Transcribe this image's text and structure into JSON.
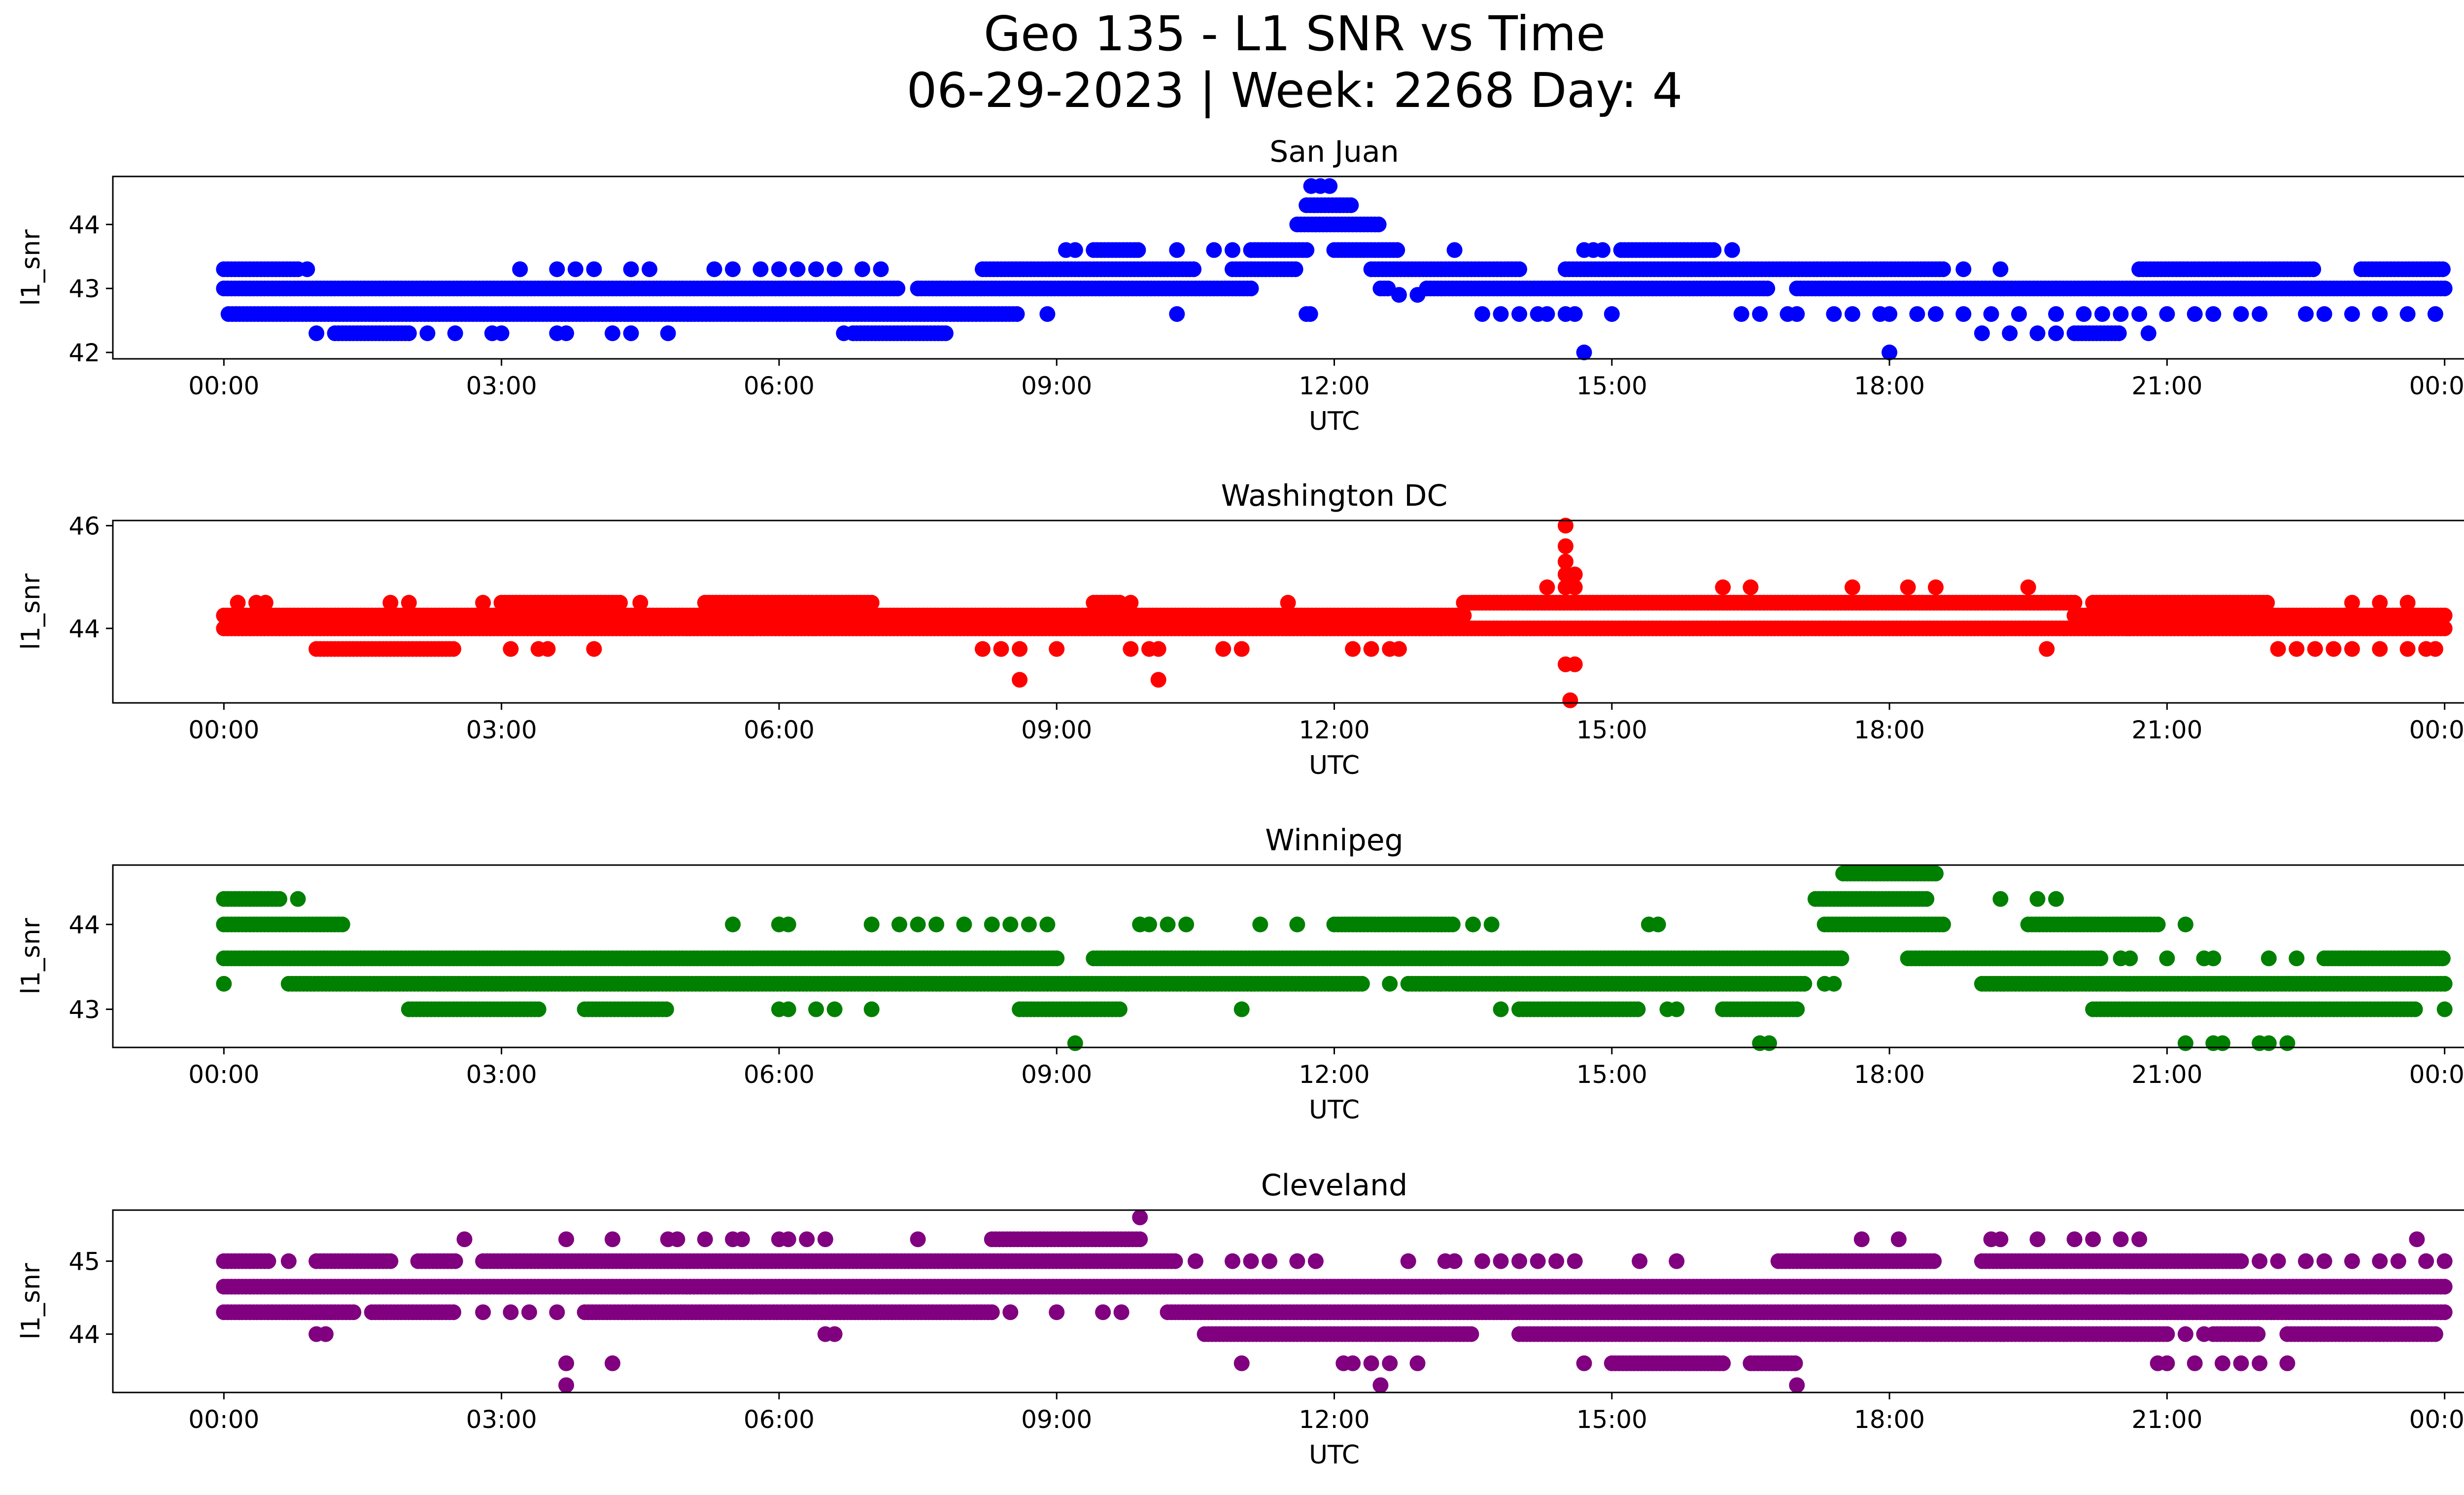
{
  "figure": {
    "title_line1": "Geo 135 - L1 SNR vs Time",
    "title_line2": "06-29-2023 | Week: 2268 Day: 4"
  },
  "chart_data": [
    {
      "type": "scatter",
      "title": "San Juan",
      "xlabel": "UTC",
      "ylabel": "l1_snr",
      "color": "#0000ff",
      "x_ticks": [
        "00:00",
        "03:00",
        "06:00",
        "09:00",
        "12:00",
        "15:00",
        "18:00",
        "21:00",
        "00:00"
      ],
      "y_ticks": [
        42,
        43,
        44
      ],
      "xlim_hours": [
        -1.2,
        25.2
      ],
      "ylim": [
        41.9,
        44.75
      ],
      "series": [
        {
          "y": 43.0,
          "segments": [
            [
              0.0,
              7.3
            ],
            [
              7.5,
              11.1
            ],
            [
              12.5,
              12.6
            ],
            [
              13.0,
              16.7
            ],
            [
              17.0,
              24.0
            ]
          ]
        },
        {
          "y": 42.6,
          "segments": [
            [
              0.05,
              8.6
            ],
            [
              11.7,
              11.75
            ]
          ],
          "points": [
            8.9,
            10.3,
            13.6,
            13.8,
            14.0,
            14.2,
            14.3,
            14.5,
            14.6,
            15.0,
            16.4,
            16.6,
            16.9,
            17.0,
            17.4,
            17.6,
            17.9,
            18.0,
            18.3,
            18.5,
            18.8,
            19.1,
            19.4,
            19.8,
            20.1,
            20.3,
            20.5,
            20.7,
            21.0,
            21.3,
            21.5,
            21.8,
            22.0,
            22.5,
            22.7,
            23.0,
            23.3,
            23.6,
            23.9
          ]
        },
        {
          "y": 43.3,
          "segments": [
            [
              0.0,
              0.8
            ],
            [
              8.2,
              10.5
            ],
            [
              10.9,
              11.6
            ],
            [
              12.4,
              14.0
            ],
            [
              14.5,
              18.6
            ],
            [
              20.7,
              22.6
            ],
            [
              23.1,
              24.0
            ]
          ],
          "points": [
            0.9,
            3.2,
            3.6,
            3.8,
            4.0,
            4.4,
            4.6,
            5.3,
            5.5,
            5.8,
            6.0,
            6.2,
            6.4,
            6.6,
            6.9,
            7.1,
            18.8,
            19.2
          ]
        },
        {
          "y": 42.3,
          "segments": [
            [
              1.2,
              2.0
            ],
            [
              6.8,
              7.8
            ],
            [
              20.0,
              20.5
            ]
          ],
          "points": [
            1.0,
            2.2,
            2.5,
            2.9,
            3.0,
            3.6,
            3.7,
            4.2,
            4.4,
            4.8,
            6.7,
            19.0,
            19.3,
            19.6,
            19.8,
            20.8
          ]
        },
        {
          "y": 43.6,
          "segments": [
            [
              9.4,
              9.9
            ],
            [
              11.1,
              11.7
            ],
            [
              12.0,
              12.7
            ],
            [
              15.1,
              16.1
            ]
          ],
          "points": [
            9.1,
            9.2,
            10.3,
            10.7,
            10.9,
            13.3,
            14.7,
            14.8,
            14.9,
            16.3
          ]
        },
        {
          "y": 42.9,
          "points": [
            12.7,
            12.9
          ]
        },
        {
          "y": 44.0,
          "segments": [
            [
              11.6,
              12.5
            ]
          ]
        },
        {
          "y": 44.3,
          "segments": [
            [
              11.7,
              12.2
            ]
          ]
        },
        {
          "y": 44.6,
          "points": [
            11.75,
            11.85,
            11.95
          ]
        },
        {
          "y": 42.0,
          "points": [
            14.7,
            18.0
          ]
        }
      ]
    },
    {
      "type": "scatter",
      "title": "Washington DC",
      "xlabel": "UTC",
      "ylabel": "l1_snr",
      "color": "#ff0000",
      "x_ticks": [
        "00:00",
        "03:00",
        "06:00",
        "09:00",
        "12:00",
        "15:00",
        "18:00",
        "21:00",
        "00:00"
      ],
      "y_ticks": [
        44,
        46
      ],
      "xlim_hours": [
        -1.2,
        25.2
      ],
      "ylim": [
        42.55,
        46.1
      ],
      "series": [
        {
          "y": 44.0,
          "segments": [
            [
              0.0,
              24.0
            ]
          ]
        },
        {
          "y": 44.25,
          "segments": [
            [
              0.0,
              13.4
            ],
            [
              20.0,
              24.0
            ]
          ]
        },
        {
          "y": 44.5,
          "segments": [
            [
              3.0,
              4.3
            ],
            [
              5.2,
              7.0
            ],
            [
              9.4,
              9.7
            ],
            [
              13.4,
              20.0
            ],
            [
              20.2,
              22.1
            ]
          ],
          "points": [
            0.15,
            0.35,
            0.45,
            1.8,
            2.0,
            2.8,
            4.5,
            9.8,
            11.5,
            23.0,
            23.3,
            23.6
          ]
        },
        {
          "y": 43.6,
          "segments": [
            [
              1.0,
              2.5
            ]
          ],
          "points": [
            3.1,
            3.4,
            3.5,
            4.0,
            8.2,
            8.4,
            8.6,
            9.0,
            9.8,
            10.0,
            10.1,
            10.8,
            11.0,
            12.2,
            12.4,
            12.6,
            12.7,
            19.7,
            22.2,
            22.4,
            22.6,
            22.8,
            23.0,
            23.3,
            23.6,
            23.8,
            23.9
          ]
        },
        {
          "y": 43.0,
          "points": [
            8.6,
            10.1
          ]
        },
        {
          "y": 44.8,
          "points": [
            14.3,
            14.5,
            14.6,
            16.2,
            16.5,
            17.6,
            18.2,
            18.5,
            19.5
          ]
        },
        {
          "y": 45.05,
          "points": [
            14.5,
            14.6
          ]
        },
        {
          "y": 45.3,
          "points": [
            14.5
          ]
        },
        {
          "y": 45.6,
          "points": [
            14.5
          ]
        },
        {
          "y": 46.0,
          "points": [
            14.5
          ]
        },
        {
          "y": 43.3,
          "points": [
            14.5,
            14.6
          ]
        },
        {
          "y": 42.6,
          "points": [
            14.55
          ]
        }
      ]
    },
    {
      "type": "scatter",
      "title": "Winnipeg",
      "xlabel": "UTC",
      "ylabel": "l1_snr",
      "color": "#008000",
      "x_ticks": [
        "00:00",
        "03:00",
        "06:00",
        "09:00",
        "12:00",
        "15:00",
        "18:00",
        "21:00",
        "00:00"
      ],
      "y_ticks": [
        43,
        44
      ],
      "xlim_hours": [
        -1.2,
        25.2
      ],
      "ylim": [
        42.55,
        44.7
      ],
      "series": [
        {
          "y": 43.6,
          "segments": [
            [
              0.0,
              9.0
            ],
            [
              9.4,
              17.5
            ],
            [
              18.2,
              20.3
            ],
            [
              22.7,
              24.0
            ]
          ],
          "points": [
            20.5,
            20.6,
            21.0,
            21.4,
            21.5,
            22.1,
            22.4
          ]
        },
        {
          "y": 43.3,
          "segments": [
            [
              0.7,
              12.3
            ],
            [
              12.8,
              17.1
            ],
            [
              19.0,
              24.0
            ]
          ],
          "points": [
            0.0,
            12.6,
            17.3,
            17.4
          ]
        },
        {
          "y": 44.0,
          "segments": [
            [
              0.0,
              1.3
            ],
            [
              12.0,
              13.3
            ],
            [
              17.3,
              18.6
            ],
            [
              19.5,
              20.9
            ]
          ],
          "points": [
            5.5,
            6.0,
            6.1,
            7.0,
            7.3,
            7.5,
            7.7,
            8.0,
            8.3,
            8.5,
            8.7,
            8.9,
            9.9,
            10.0,
            10.2,
            10.4,
            11.2,
            11.6,
            13.5,
            13.7,
            15.4,
            15.5,
            21.2
          ]
        },
        {
          "y": 44.3,
          "segments": [
            [
              0.0,
              0.6
            ],
            [
              17.2,
              18.4
            ]
          ],
          "points": [
            0.8,
            19.2,
            19.6,
            19.8
          ]
        },
        {
          "y": 44.6,
          "segments": [
            [
              17.5,
              18.5
            ]
          ]
        },
        {
          "y": 43.0,
          "segments": [
            [
              2.0,
              3.4
            ],
            [
              3.9,
              4.8
            ],
            [
              8.6,
              9.7
            ],
            [
              14.0,
              15.3
            ],
            [
              16.2,
              17.0
            ],
            [
              20.2,
              23.7
            ]
          ],
          "points": [
            6.0,
            6.1,
            6.4,
            6.6,
            7.0,
            11.0,
            13.8,
            15.6,
            15.7,
            24.0
          ]
        },
        {
          "y": 42.6,
          "points": [
            9.2,
            16.6,
            16.7,
            21.2,
            21.5,
            21.6,
            22.0,
            22.1,
            22.3
          ]
        }
      ]
    },
    {
      "type": "scatter",
      "title": "Cleveland",
      "xlabel": "UTC",
      "ylabel": "l1_snr",
      "color": "#800080",
      "x_ticks": [
        "00:00",
        "03:00",
        "06:00",
        "09:00",
        "12:00",
        "15:00",
        "18:00",
        "21:00",
        "00:00"
      ],
      "y_ticks": [
        44,
        45
      ],
      "xlim_hours": [
        -1.2,
        25.2
      ],
      "ylim": [
        43.2,
        45.7
      ],
      "series": [
        {
          "y": 44.65,
          "segments": [
            [
              0.0,
              24.0
            ]
          ]
        },
        {
          "y": 44.3,
          "segments": [
            [
              0.0,
              1.4
            ],
            [
              1.6,
              2.5
            ],
            [
              3.9,
              8.3
            ],
            [
              10.2,
              24.0
            ]
          ],
          "points": [
            2.8,
            3.1,
            3.3,
            3.6,
            8.5,
            9.0,
            9.5,
            9.7
          ]
        },
        {
          "y": 45.0,
          "segments": [
            [
              0.0,
              0.5
            ],
            [
              1.0,
              1.8
            ],
            [
              2.1,
              2.5
            ],
            [
              2.8,
              10.3
            ],
            [
              16.8,
              18.5
            ],
            [
              19.0,
              21.8
            ]
          ],
          "points": [
            0.7,
            10.5,
            10.9,
            11.1,
            11.3,
            11.6,
            11.8,
            12.8,
            13.2,
            13.3,
            13.6,
            13.8,
            14.0,
            14.2,
            14.4,
            14.6,
            15.3,
            15.7,
            22.0,
            22.2,
            22.5,
            22.7,
            23.0,
            23.3,
            23.5,
            23.8,
            24.0
          ]
        },
        {
          "y": 44.0,
          "segments": [
            [
              10.6,
              13.5
            ],
            [
              14.0,
              21.0
            ],
            [
              21.5,
              22.0
            ],
            [
              22.3,
              23.9
            ]
          ],
          "points": [
            1.0,
            1.1,
            6.5,
            6.6,
            21.2,
            21.4
          ]
        },
        {
          "y": 45.3,
          "segments": [
            [
              8.3,
              9.9
            ]
          ],
          "points": [
            2.6,
            3.7,
            4.2,
            4.8,
            4.9,
            5.2,
            5.5,
            5.6,
            6.0,
            6.1,
            6.3,
            6.5,
            7.5,
            17.7,
            18.1,
            19.1,
            19.2,
            19.6,
            20.0,
            20.2,
            20.5,
            20.7,
            23.7
          ]
        },
        {
          "y": 45.6,
          "points": [
            9.9
          ]
        },
        {
          "y": 43.6,
          "segments": [
            [
              15.0,
              16.2
            ],
            [
              16.5,
              17.0
            ]
          ],
          "points": [
            3.7,
            4.2,
            11.0,
            12.1,
            12.2,
            12.4,
            12.6,
            12.9,
            14.7,
            20.9,
            21.0,
            21.3,
            21.6,
            21.8,
            22.0,
            22.3
          ]
        },
        {
          "y": 43.3,
          "points": [
            3.7,
            12.5,
            17.0
          ]
        }
      ]
    }
  ]
}
